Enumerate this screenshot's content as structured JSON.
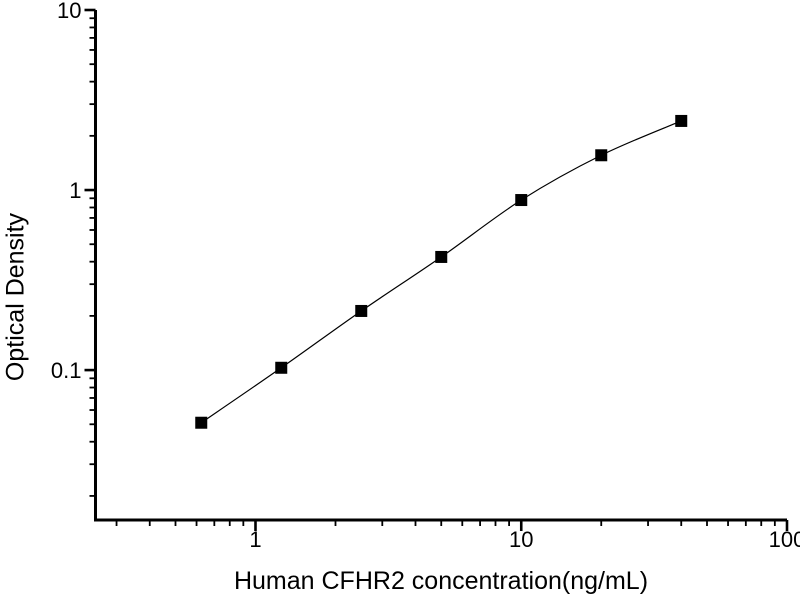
{
  "chart_data": {
    "type": "scatter",
    "xlabel": "Human CFHR2 concentration(ng/mL)",
    "ylabel": "Optical Density",
    "xscale": "log",
    "yscale": "log",
    "xlim": [
      0.25,
      100
    ],
    "ylim": [
      0.0147,
      10
    ],
    "x": [
      0.625,
      1.25,
      2.5,
      5,
      10,
      20,
      40
    ],
    "y": [
      0.051,
      0.103,
      0.213,
      0.425,
      0.88,
      1.56,
      2.42
    ],
    "x_major_ticks": [
      1,
      10,
      100
    ],
    "x_tick_labels": [
      "1",
      "10",
      "100"
    ],
    "y_major_ticks": [
      0.1,
      1,
      10
    ],
    "y_tick_labels": [
      "0.1",
      "1",
      "10"
    ],
    "marker": "filled-square",
    "line": "smooth",
    "grid": false,
    "legend": "none",
    "colors": {
      "background": "#ffffff",
      "axis": "#000000",
      "curve": "#000000",
      "marker": "#000000",
      "text": "#000000"
    }
  }
}
